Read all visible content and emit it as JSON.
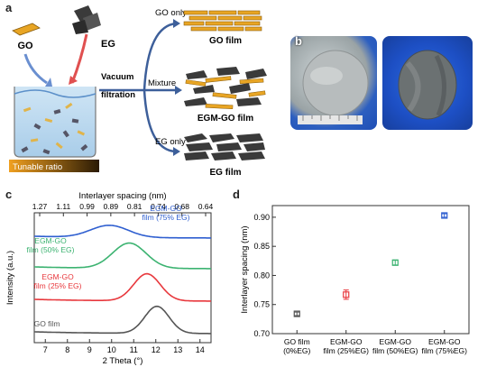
{
  "panel_a": {
    "letter": "a",
    "go_label": "GO",
    "eg_label": "EG",
    "vacuum_label_1": "Vacuum",
    "vacuum_label_2": "filtration",
    "tunable_label": "Tunable ratio",
    "branches": [
      {
        "route_label": "GO only",
        "film_label": "GO film"
      },
      {
        "route_label": "Mixture",
        "film_label": "EGM-GO film"
      },
      {
        "route_label": "EG only",
        "film_label": "EG film"
      }
    ],
    "colors": {
      "go": "#e8a524",
      "eg": "#3a3a3a",
      "arrow": "#4a6fa5",
      "arrow_red": "#e04040"
    }
  },
  "panel_b": {
    "letter": "b"
  },
  "panel_c": {
    "letter": "c",
    "chart_data": {
      "type": "line",
      "xlabel": "2 Theta (°)",
      "ylabel": "Intensity (a.u.)",
      "top_axis_label": "Interlayer spacing (nm)",
      "x_ticks": [
        7,
        8,
        9,
        10,
        11,
        12,
        13,
        14
      ],
      "xlim": [
        6.5,
        14.5
      ],
      "top_ticks": [
        "1.27",
        "1.11",
        "0.99",
        "0.89",
        "0.81",
        "0.74",
        "0.68",
        "0.64"
      ],
      "series": [
        {
          "name": "GO film",
          "color": "#555555",
          "peak": 12.05,
          "width": 0.55,
          "height": 1.0,
          "offset": 0
        },
        {
          "name": "EGM-GO film (25% EG)",
          "color": "#e8383d",
          "peak": 11.6,
          "width": 0.6,
          "height": 1.0,
          "offset": 1
        },
        {
          "name": "EGM-GO film (50% EG)",
          "color": "#3cb371",
          "peak": 10.8,
          "width": 0.75,
          "height": 1.0,
          "offset": 2
        },
        {
          "name": "EGM-GO film (75% EG)",
          "color": "#2f5fd0",
          "peak": 9.9,
          "width": 0.85,
          "height": 0.75,
          "offset": 3
        }
      ],
      "labels": [
        {
          "line1": "GO film",
          "line2": ""
        },
        {
          "line1": "EGM-GO",
          "line2": "film (25% EG)"
        },
        {
          "line1": "EGM-GO",
          "line2": "film (50% EG)"
        },
        {
          "line1": "EGM-GO",
          "line2": "film (75% EG)"
        }
      ]
    }
  },
  "panel_d": {
    "letter": "d",
    "chart_data": {
      "type": "scatter",
      "ylabel": "Interlayer spacing (nm)",
      "ylim": [
        0.7,
        0.92
      ],
      "y_ticks": [
        "0.70",
        "0.75",
        "0.80",
        "0.85",
        "0.90"
      ],
      "categories": [
        {
          "line1": "GO film",
          "line2": "(0%EG)"
        },
        {
          "line1": "EGM-GO",
          "line2": "film (25%EG)"
        },
        {
          "line1": "EGM-GO",
          "line2": "film (50%EG)"
        },
        {
          "line1": "EGM-GO",
          "line2": "film (75%EG)"
        }
      ],
      "values": [
        0.734,
        0.767,
        0.822,
        0.903
      ],
      "errors": [
        0.003,
        0.008,
        0.004,
        0.003
      ],
      "colors": [
        "#555555",
        "#e8383d",
        "#3cb371",
        "#2f5fd0"
      ]
    }
  }
}
